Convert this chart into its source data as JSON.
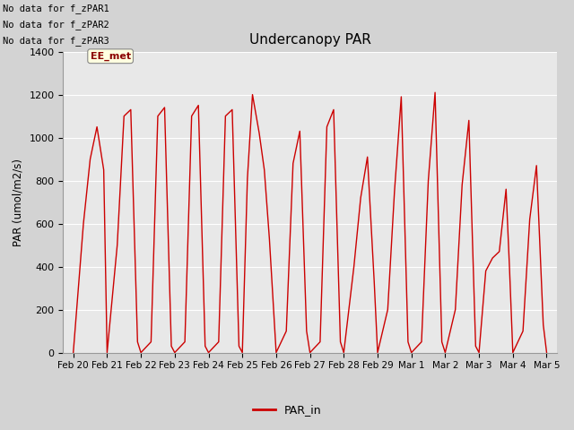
{
  "title": "Undercanopy PAR",
  "ylabel": "PAR (umol/m2/s)",
  "ylim": [
    0,
    1400
  ],
  "yticks": [
    0,
    200,
    400,
    600,
    800,
    1000,
    1200,
    1400
  ],
  "background_color": "#d3d3d3",
  "plot_bg_color": "#e8e8e8",
  "line_color": "#cc0000",
  "legend_label": "PAR_in",
  "no_data_texts": [
    "No data for f_zPAR1",
    "No data for f_zPAR2",
    "No data for f_zPAR3"
  ],
  "ee_met_label": "EE_met",
  "xtick_labels": [
    "Feb 20",
    "Feb 21",
    "Feb 22",
    "Feb 23",
    "Feb 24",
    "Feb 25",
    "Feb 26",
    "Feb 27",
    "Feb 28",
    "Feb 29",
    "Mar 1",
    "Mar 2",
    "Mar 3",
    "Mar 4",
    "Mar 5"
  ],
  "x_values": [
    0,
    0.3,
    0.5,
    0.7,
    0.9,
    1.0,
    1.0,
    1.3,
    1.5,
    1.7,
    1.9,
    2.0,
    2.0,
    2.3,
    2.5,
    2.7,
    2.9,
    3.0,
    3.0,
    3.3,
    3.5,
    3.7,
    3.9,
    4.0,
    4.0,
    4.3,
    4.5,
    4.7,
    4.9,
    5.0,
    5.0,
    5.15,
    5.3,
    5.5,
    5.65,
    5.8,
    6.0,
    6.0,
    6.3,
    6.5,
    6.7,
    6.9,
    7.0,
    7.0,
    7.3,
    7.5,
    7.7,
    7.9,
    8.0,
    8.0,
    8.3,
    8.5,
    8.7,
    8.9,
    9.0,
    9.0,
    9.3,
    9.5,
    9.7,
    9.9,
    10.0,
    10.0,
    10.3,
    10.5,
    10.7,
    10.9,
    11.0,
    11.0,
    11.3,
    11.5,
    11.7,
    11.9,
    12.0,
    12.0,
    12.2,
    12.4,
    12.6,
    12.8,
    12.9,
    13.0,
    13.0,
    13.3,
    13.5,
    13.7,
    13.9,
    14.0
  ],
  "y_values": [
    0,
    600,
    900,
    1050,
    850,
    0,
    0,
    500,
    1100,
    1130,
    50,
    0,
    0,
    50,
    1100,
    1140,
    30,
    0,
    0,
    50,
    1100,
    1150,
    30,
    0,
    0,
    50,
    1100,
    1130,
    30,
    0,
    0,
    810,
    1200,
    1020,
    850,
    530,
    0,
    0,
    100,
    880,
    1030,
    100,
    0,
    0,
    50,
    1050,
    1130,
    50,
    0,
    0,
    400,
    720,
    910,
    330,
    0,
    0,
    200,
    750,
    1190,
    50,
    0,
    0,
    50,
    800,
    1210,
    50,
    0,
    0,
    200,
    780,
    1080,
    30,
    0,
    0,
    380,
    440,
    470,
    760,
    400,
    0,
    0,
    100,
    620,
    870,
    130,
    0
  ],
  "figsize": [
    6.4,
    4.8
  ],
  "dpi": 100
}
